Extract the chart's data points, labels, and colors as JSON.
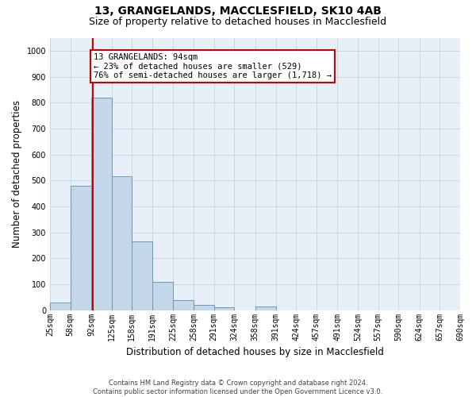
{
  "title_line1": "13, GRANGELANDS, MACCLESFIELD, SK10 4AB",
  "title_line2": "Size of property relative to detached houses in Macclesfield",
  "xlabel": "Distribution of detached houses by size in Macclesfield",
  "ylabel": "Number of detached properties",
  "footnote": "Contains HM Land Registry data © Crown copyright and database right 2024.\nContains public sector information licensed under the Open Government Licence v3.0.",
  "bin_edges": [
    25,
    58,
    92,
    125,
    158,
    191,
    225,
    258,
    291,
    324,
    358,
    391,
    424,
    457,
    491,
    524,
    557,
    590,
    624,
    657,
    690
  ],
  "bar_heights": [
    30,
    478,
    820,
    515,
    265,
    110,
    40,
    20,
    10,
    0,
    15,
    0,
    0,
    0,
    0,
    0,
    0,
    0,
    0,
    0
  ],
  "bar_color": "#c5d8ea",
  "bar_edge_color": "#6699bb",
  "property_line_x": 94,
  "annotation_text_line1": "13 GRANGELANDS: 94sqm",
  "annotation_text_line2": "← 23% of detached houses are smaller (529)",
  "annotation_text_line3": "76% of semi-detached houses are larger (1,718) →",
  "annotation_box_color": "#cc0000",
  "ylim": [
    0,
    1050
  ],
  "yticks": [
    0,
    100,
    200,
    300,
    400,
    500,
    600,
    700,
    800,
    900,
    1000
  ],
  "xtick_labels": [
    "25sqm",
    "58sqm",
    "92sqm",
    "125sqm",
    "158sqm",
    "191sqm",
    "225sqm",
    "258sqm",
    "291sqm",
    "324sqm",
    "358sqm",
    "391sqm",
    "424sqm",
    "457sqm",
    "491sqm",
    "524sqm",
    "557sqm",
    "590sqm",
    "624sqm",
    "657sqm",
    "690sqm"
  ],
  "grid_color": "#c8d8e8",
  "bg_color": "#e8eff6",
  "title_fontsize": 10,
  "subtitle_fontsize": 9,
  "tick_fontsize": 7,
  "label_fontsize": 8.5,
  "annotation_fontsize": 7.5
}
